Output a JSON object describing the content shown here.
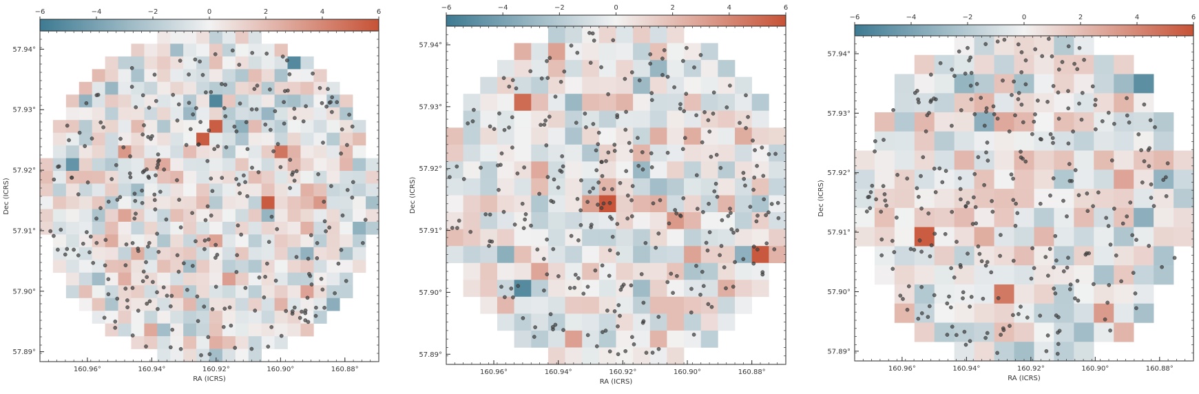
{
  "chart_data": [
    {
      "type": "heatmap",
      "panel": "left",
      "grid_cells": 26,
      "colorbar": {
        "ticks": [
          "−6",
          "−4",
          "−2",
          "0",
          "2",
          "4",
          "6"
        ],
        "range": [
          -6,
          6
        ],
        "colors": {
          "low": "#3d7a92",
          "mid": "#f2f2f2",
          "high": "#c75236"
        }
      },
      "xlabel": "RA (ICRS)",
      "ylabel": "Dec (ICRS)",
      "xticks": [
        "160.96°",
        "160.94°",
        "160.92°",
        "160.90°",
        "160.88°"
      ],
      "yticks": [
        "57.94°",
        "57.93°",
        "57.92°",
        "57.91°",
        "57.90°",
        "57.89°"
      ],
      "seed": 11,
      "points_count": 300
    },
    {
      "type": "heatmap",
      "panel": "middle",
      "grid_cells": 20,
      "colorbar": {
        "ticks": [
          "−6",
          "−4",
          "−2",
          "0",
          "2",
          "4",
          "6"
        ],
        "range": [
          -6,
          6
        ],
        "colors": {
          "low": "#3d7a92",
          "mid": "#f2f2f2",
          "high": "#c75236"
        }
      },
      "xlabel": "RA (ICRS)",
      "ylabel": "Dec (ICRS)",
      "xticks": [
        "160.96°",
        "160.94°",
        "160.92°",
        "160.90°",
        "160.88°"
      ],
      "yticks": [
        "57.94°",
        "57.93°",
        "57.92°",
        "57.91°",
        "57.90°",
        "57.89°"
      ],
      "seed": 23,
      "points_count": 300
    },
    {
      "type": "heatmap",
      "panel": "right",
      "grid_cells": 17,
      "colorbar": {
        "ticks": [
          "−6",
          "−4",
          "−2",
          "0",
          "2",
          "4",
          "6"
        ],
        "range": [
          -6,
          6
        ],
        "colors": {
          "low": "#3d7a92",
          "mid": "#f2f2f2",
          "high": "#c75236"
        }
      },
      "xlabel": "RA (ICRS)",
      "ylabel": "Dec (ICRS)",
      "xticks": [
        "160.96°",
        "160.94°",
        "160.92°",
        "160.90°",
        "160.88°"
      ],
      "yticks": [
        "57.94°",
        "57.93°",
        "57.92°",
        "57.91°",
        "57.90°",
        "57.89°"
      ],
      "seed": 37,
      "points_count": 300
    }
  ]
}
